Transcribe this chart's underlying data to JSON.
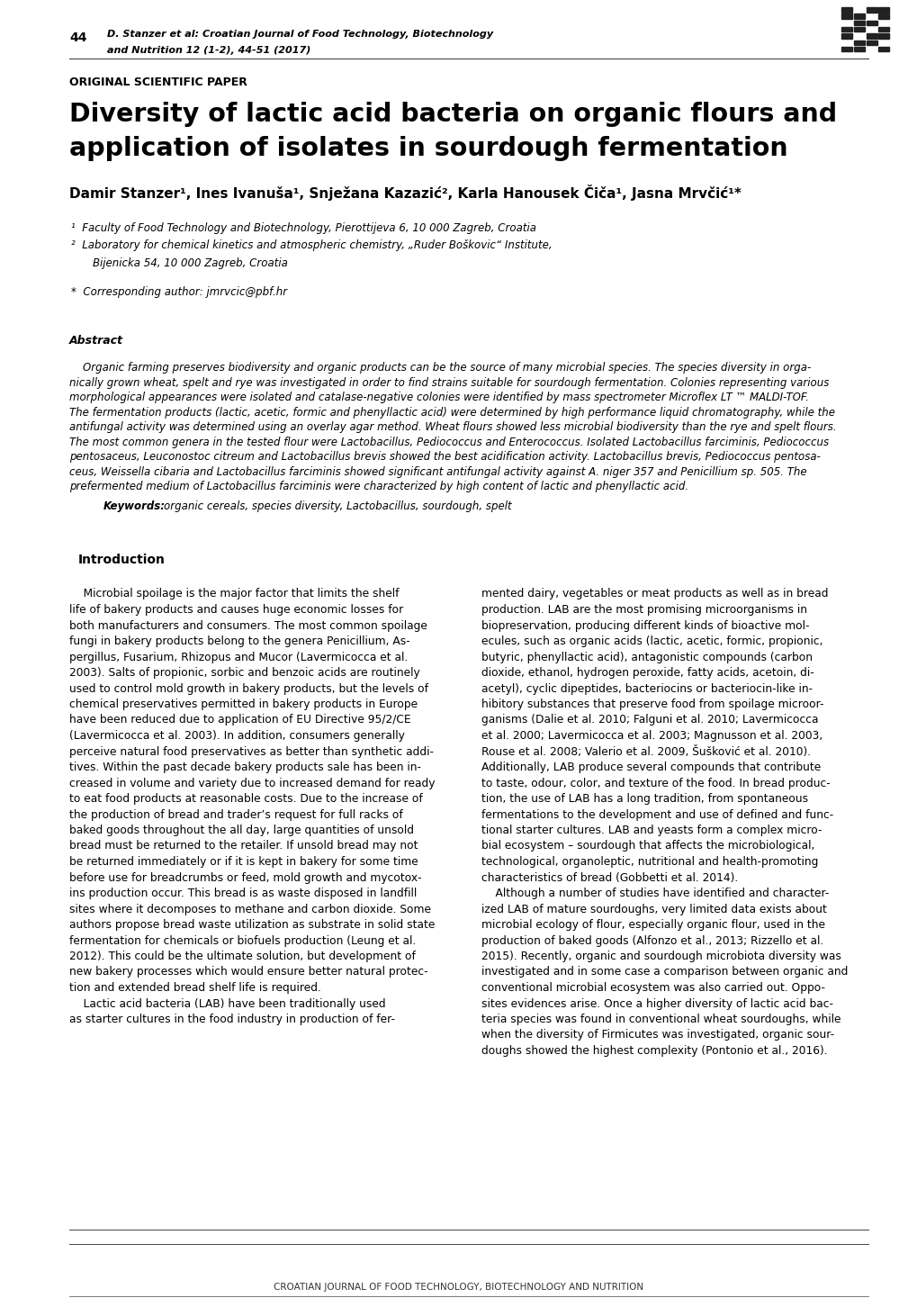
{
  "page_width": 10.2,
  "page_height": 14.42,
  "background_color": "#ffffff",
  "header_left_number": "44",
  "header_citation_line1": "D. Stanzer et al: Croatian Journal of Food Technology, Biotechnology",
  "header_citation_line2": "and Nutrition 12 (1-2), 44-51 (2017)",
  "section_label": "ORIGINAL SCIENTIFIC PAPER",
  "title_line1": "Diversity of lactic acid bacteria on organic flours and",
  "title_line2": "application of isolates in sourdough fermentation",
  "authors_display": "Damir Stanzer¹, Ines Ivanuša¹, Snježana Kazazić², Karla Hanousek Čiča¹, Jasna Mrvčić¹*",
  "affil1_super": "1",
  "affil1": "Faculty of Food Technology and Biotechnology, Pierottijeva 6, 10 000 Zagreb, Croatia",
  "affil2_super": "2",
  "affil2": "Laboratory for chemical kinetics and atmospheric chemistry, „Ruder Boškovic“ Institute,",
  "affil2b": "Bijenicka 54, 10 000 Zagreb, Croatia",
  "corresponding": "*  Corresponding author: jmrvcic@pbf.hr",
  "abstract_label": "Abstract",
  "keywords_label": "Keywords:",
  "keywords_text": "organic cereals, species diversity, Lactobacillus, sourdough, spelt",
  "intro_heading": "Introduction",
  "footer_text": "CROATIAN JOURNAL OF FOOD TECHNOLOGY, BIOTECHNOLOGY AND NUTRITION",
  "col1_lines": [
    "    Microbial spoilage is the major factor that limits the shelf",
    "life of bakery products and causes huge economic losses for",
    "both manufacturers and consumers. The most common spoilage",
    "fungi in bakery products belong to the genera Penicillium, As-",
    "pergillus, Fusarium, Rhizopus and Mucor (Lavermicocca et al.",
    "2003). Salts of propionic, sorbic and benzoic acids are routinely",
    "used to control mold growth in bakery products, but the levels of",
    "chemical preservatives permitted in bakery products in Europe",
    "have been reduced due to application of EU Directive 95/2/CE",
    "(Lavermicocca et al. 2003). In addition, consumers generally",
    "perceive natural food preservatives as better than synthetic addi-",
    "tives. Within the past decade bakery products sale has been in-",
    "creased in volume and variety due to increased demand for ready",
    "to eat food products at reasonable costs. Due to the increase of",
    "the production of bread and trader’s request for full racks of",
    "baked goods throughout the all day, large quantities of unsold",
    "bread must be returned to the retailer. If unsold bread may not",
    "be returned immediately or if it is kept in bakery for some time",
    "before use for breadcrumbs or feed, mold growth and mycotox-",
    "ins production occur. This bread is as waste disposed in landfill",
    "sites where it decomposes to methane and carbon dioxide. Some",
    "authors propose bread waste utilization as substrate in solid state",
    "fermentation for chemicals or biofuels production (Leung et al.",
    "2012). This could be the ultimate solution, but development of",
    "new bakery processes which would ensure better natural protec-",
    "tion and extended bread shelf life is required.",
    "    Lactic acid bacteria (LAB) have been traditionally used",
    "as starter cultures in the food industry in production of fer-"
  ],
  "col2_lines": [
    "mented dairy, vegetables or meat products as well as in bread",
    "production. LAB are the most promising microorganisms in",
    "biopreservation, producing different kinds of bioactive mol-",
    "ecules, such as organic acids (lactic, acetic, formic, propionic,",
    "butyric, phenyllactic acid), antagonistic compounds (carbon",
    "dioxide, ethanol, hydrogen peroxide, fatty acids, acetoin, di-",
    "acetyl), cyclic dipeptides, bacteriocins or bacteriocin-like in-",
    "hibitory substances that preserve food from spoilage microor-",
    "ganisms (Dalie et al. 2010; Falguni et al. 2010; Lavermicocca",
    "et al. 2000; Lavermicocca et al. 2003; Magnusson et al. 2003,",
    "Rouse et al. 2008; Valerio et al. 2009, Šušković et al. 2010).",
    "Additionally, LAB produce several compounds that contribute",
    "to taste, odour, color, and texture of the food. In bread produc-",
    "tion, the use of LAB has a long tradition, from spontaneous",
    "fermentations to the development and use of defined and func-",
    "tional starter cultures. LAB and yeasts form a complex micro-",
    "bial ecosystem – sourdough that affects the microbiological,",
    "technological, organoleptic, nutritional and health-promoting",
    "characteristics of bread (Gobbetti et al. 2014).",
    "    Although a number of studies have identified and character-",
    "ized LAB of mature sourdoughs, very limited data exists about",
    "microbial ecology of flour, especially organic flour, used in the",
    "production of baked goods (Alfonzo et al., 2013; Rizzello et al.",
    "2015). Recently, organic and sourdough microbiota diversity was",
    "investigated and in some case a comparison between organic and",
    "conventional microbial ecosystem was also carried out. Oppo-",
    "sites evidences arise. Once a higher diversity of lactic acid bac-",
    "teria species was found in conventional wheat sourdoughs, while",
    "when the diversity of Firmicutes was investigated, organic sour-",
    "doughs showed the highest complexity (Pontonio et al., 2016)."
  ],
  "abstract_lines": [
    "    Organic farming preserves biodiversity and organic products can be the source of many microbial species. The species diversity in orga-",
    "nically grown wheat, spelt and rye was investigated in order to find strains suitable for sourdough fermentation. Colonies representing various",
    "morphological appearances were isolated and catalase-negative colonies were identified by mass spectrometer Microflex LT ™ MALDI-TOF.",
    "The fermentation products (lactic, acetic, formic and phenyllactic acid) were determined by high performance liquid chromatography, while the",
    "antifungal activity was determined using an overlay agar method. Wheat flours showed less microbial biodiversity than the rye and spelt flours.",
    "The most common genera in the tested flour were Lactobacillus, Pediococcus and Enterococcus. Isolated Lactobacillus farciminis, Pediococcus",
    "pentosaceus, Leuconostoc citreum and Lactobacillus brevis showed the best acidification activity. Lactobacillus brevis, Pediococcus pentosa-",
    "ceus, Weissella cibaria and Lactobacillus farciminis showed significant antifungal activity against A. niger 357 and Penicillium sp. 505. The",
    "prefermented medium of Lactobacillus farciminis were characterized by high content of lactic and phenyllactic acid."
  ]
}
